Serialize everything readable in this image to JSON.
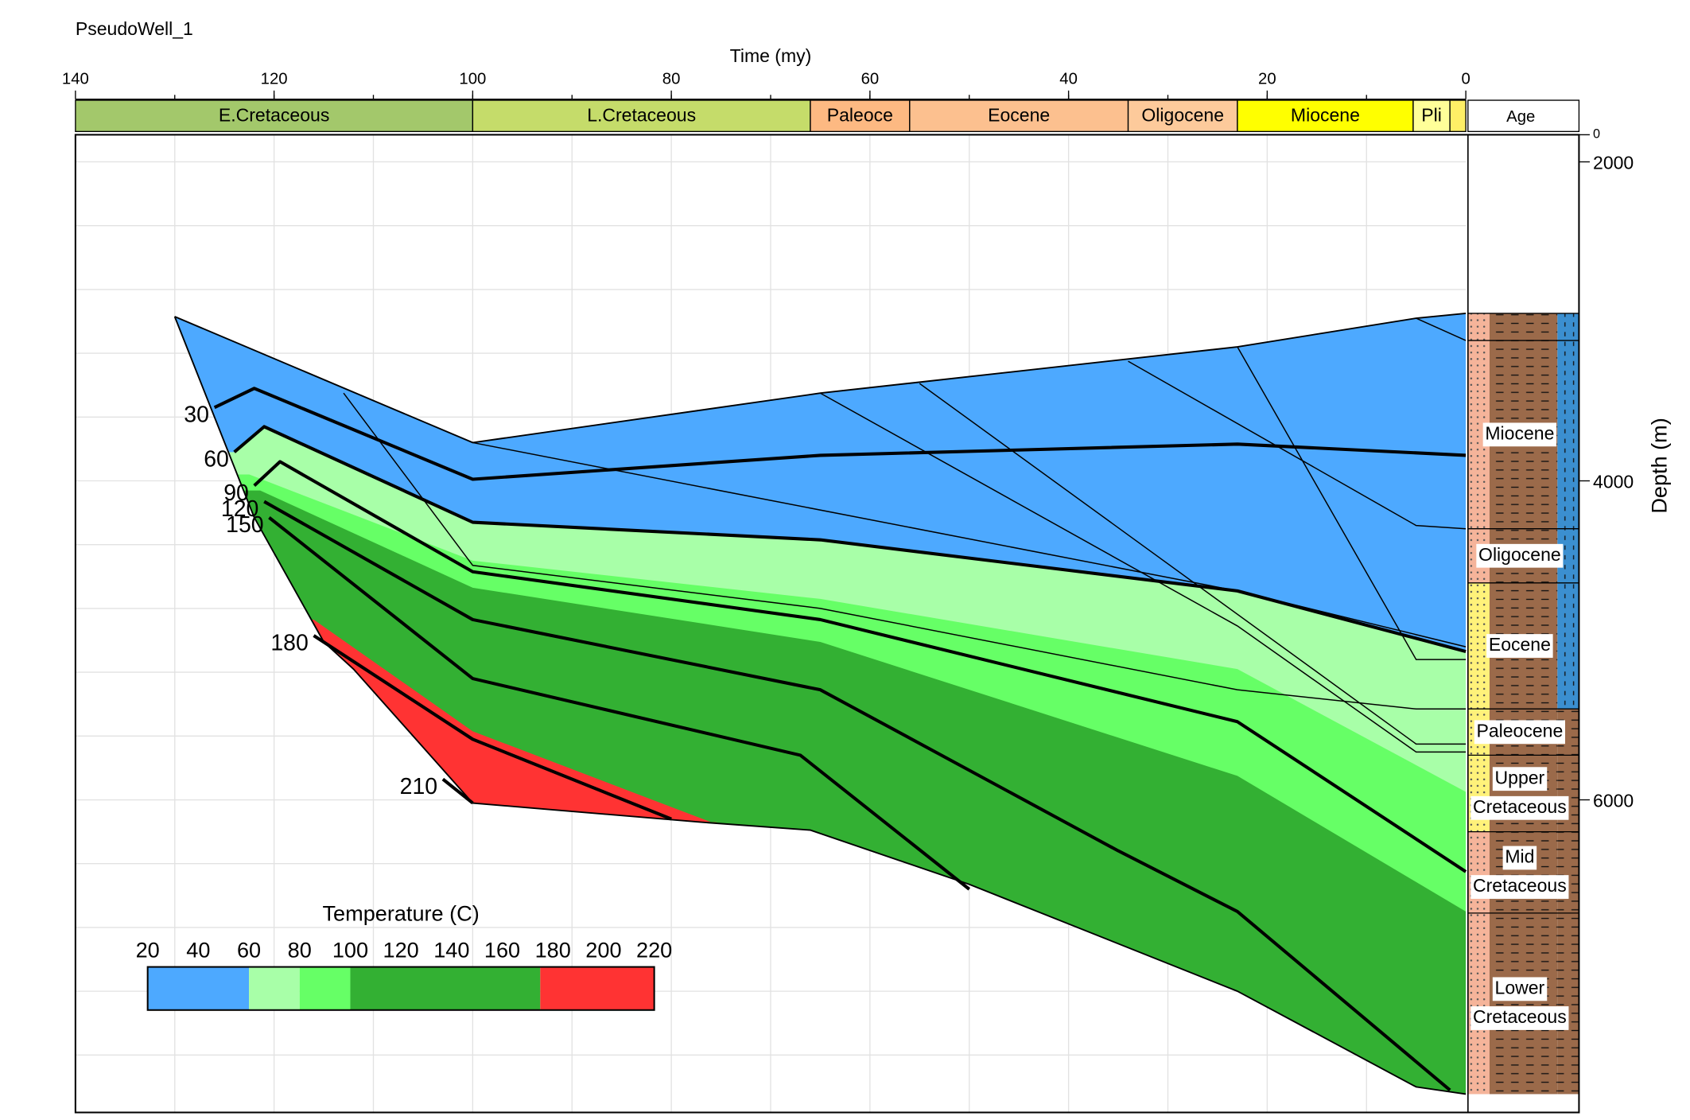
{
  "chart_data": {
    "type": "burial",
    "title": "PseudoWell_1",
    "x_label": "Time (my)",
    "y_label": "Depth (m)",
    "xlim": [
      140,
      0
    ],
    "xticks": [
      140,
      120,
      100,
      80,
      60,
      40,
      20,
      0
    ],
    "x_grid": [
      130,
      120,
      110,
      100,
      90,
      80,
      70,
      60,
      50,
      40,
      30,
      20,
      10
    ],
    "ylim": [
      1830,
      7960
    ],
    "yticks": [
      2000,
      4000,
      6000
    ],
    "y_grid": [
      2000,
      2400,
      2800,
      3200,
      3600,
      4000,
      4400,
      4800,
      5200,
      5600,
      6000,
      6400,
      6800,
      7200,
      7600
    ],
    "depth_axis_top_label": "0",
    "age_header": "Age",
    "periods": [
      {
        "name": "E.Cretaceous",
        "start": 140,
        "end": 100,
        "color": "#a3c86b"
      },
      {
        "name": "L.Cretaceous",
        "start": 100,
        "end": 66,
        "color": "#c5dc6a"
      },
      {
        "name": "Paleoce",
        "start": 66,
        "end": 56,
        "color": "#fdb982"
      },
      {
        "name": "Eocene",
        "start": 56,
        "end": 34,
        "color": "#fcc08f"
      },
      {
        "name": "Oligocene",
        "start": 34,
        "end": 23,
        "color": "#fdca9b"
      },
      {
        "name": "Miocene",
        "start": 23,
        "end": 5.3,
        "color": "#ffff00"
      },
      {
        "name": "Pli",
        "start": 5.3,
        "end": 1.6,
        "color": "#ffff99"
      },
      {
        "name": null,
        "start": 1.6,
        "end": 0,
        "color": "#ffef66"
      }
    ],
    "section": {
      "top": {
        "x": [
          130,
          100,
          65,
          23,
          5,
          0
        ],
        "y": [
          2970,
          3760,
          3450,
          3160,
          2980,
          2950
        ]
      },
      "base": {
        "x": [
          130,
          122,
          115,
          112,
          100,
          77,
          66,
          50,
          23,
          5,
          0
        ],
        "y": [
          2970,
          4230,
          5010,
          5180,
          6020,
          6140,
          6190,
          6530,
          7200,
          7800,
          7845
        ]
      }
    },
    "temperature_scale": {
      "label": "Temperature (C)",
      "lim": [
        20,
        220
      ],
      "ticks": [
        20,
        40,
        60,
        80,
        100,
        120,
        140,
        160,
        180,
        200,
        220
      ],
      "zones": [
        {
          "min": 20,
          "max": 60,
          "color": "#4da9ff"
        },
        {
          "min": 60,
          "max": 80,
          "color": "#a8ffa8",
          "boundary": {
            "x": [
              124,
              121,
              100,
              65,
              23,
              0
            ],
            "y": [
              3820,
              3660,
              4260,
              4370,
              4690,
              5070
            ]
          }
        },
        {
          "min": 80,
          "max": 100,
          "color": "#66ff66",
          "boundary": {
            "x": [
              122.5,
              100,
              65,
              23,
              0
            ],
            "y": [
              3960,
              4500,
              4740,
              5180,
              5950
            ]
          }
        },
        {
          "min": 100,
          "max": 175,
          "color": "#33b033",
          "boundary": {
            "x": [
              121.4,
              100,
              65,
              23,
              0
            ],
            "y": [
              4060,
              4670,
              5010,
              5850,
              6700
            ]
          }
        },
        {
          "min": 175,
          "max": 220,
          "color": "#ff3333",
          "boundary": {
            "x": [
              116,
              100,
              76
            ],
            "y": [
              4870,
              5570,
              6140
            ]
          }
        }
      ]
    },
    "isotherms": [
      {
        "name": "30",
        "x": [
          126,
          122,
          100,
          65,
          23,
          0
        ],
        "y": [
          3540,
          3420,
          3990,
          3840,
          3770,
          3840
        ]
      },
      {
        "name": "60",
        "x": [
          124,
          121,
          100,
          65,
          23,
          0
        ],
        "y": [
          3820,
          3660,
          4260,
          4370,
          4690,
          5070
        ]
      },
      {
        "name": "90",
        "x": [
          122,
          119.4,
          100,
          65,
          23,
          0
        ],
        "y": [
          4030,
          3880,
          4570,
          4870,
          5510,
          6450
        ]
      },
      {
        "name": "120",
        "x": [
          121,
          100,
          65,
          35,
          23,
          1.6
        ],
        "y": [
          4130,
          4870,
          5310,
          6320,
          6700,
          7820
        ]
      },
      {
        "name": "150",
        "x": [
          120.5,
          100,
          67,
          50
        ],
        "y": [
          4230,
          5240,
          5720,
          6560
        ]
      },
      {
        "name": "180",
        "x": [
          116,
          100,
          80
        ],
        "y": [
          4970,
          5620,
          6120
        ]
      },
      {
        "name": "210",
        "x": [
          103,
          100
        ],
        "y": [
          5870,
          6020
        ]
      }
    ],
    "horizons": [
      {
        "x": [
          113,
          100,
          65,
          23,
          5,
          0
        ],
        "y": [
          3450,
          4530,
          4800,
          5310,
          5430,
          5430
        ]
      },
      {
        "x": [
          100,
          23,
          0
        ],
        "y": [
          3760,
          4690,
          5040
        ]
      },
      {
        "x": [
          65,
          23,
          5,
          0
        ],
        "y": [
          3450,
          4910,
          5700,
          5700
        ]
      },
      {
        "x": [
          55,
          5,
          0
        ],
        "y": [
          3390,
          5650,
          5650
        ]
      },
      {
        "x": [
          34,
          5,
          0
        ],
        "y": [
          3250,
          4280,
          4300
        ]
      },
      {
        "x": [
          23,
          5,
          0
        ],
        "y": [
          3160,
          5120,
          5120
        ]
      },
      {
        "x": [
          5,
          0
        ],
        "y": [
          2980,
          3120
        ]
      }
    ],
    "formations": [
      {
        "name": null,
        "top": 2950,
        "base": 3120,
        "colors": [
          "#f5b49a",
          "#9b6a4a",
          "#3b8fd0"
        ]
      },
      {
        "name": "Miocene",
        "top": 3120,
        "base": 4300,
        "colors": [
          "#f5b49a",
          "#9b6a4a",
          "#3b8fd0"
        ]
      },
      {
        "name": "Oligocene",
        "top": 4300,
        "base": 4640,
        "colors": [
          "#f5b49a",
          "#9b6a4a",
          "#3b8fd0"
        ]
      },
      {
        "name": "Eocene",
        "top": 4640,
        "base": 5430,
        "colors": [
          "#fff27a",
          "#9b6a4a",
          "#3b8fd0"
        ]
      },
      {
        "name": "Paleocene",
        "top": 5430,
        "base": 5720,
        "colors": [
          "#fff27a",
          "#9b6a4a",
          "#9b6a4a"
        ]
      },
      {
        "name": [
          "Upper",
          "Cretaceous"
        ],
        "top": 5720,
        "base": 6200,
        "colors": [
          "#fff27a",
          "#9b6a4a",
          "#9b6a4a"
        ]
      },
      {
        "name": [
          "Mid",
          "Cretaceous"
        ],
        "top": 6200,
        "base": 6710,
        "colors": [
          "#f5b49a",
          "#9b6a4a",
          "#9b6a4a"
        ]
      },
      {
        "name": [
          "Lower",
          "Cretaceous"
        ],
        "top": 6710,
        "base": 7845,
        "colors": [
          "#f5b49a",
          "#9b6a4a",
          "#9b6a4a"
        ]
      }
    ]
  }
}
